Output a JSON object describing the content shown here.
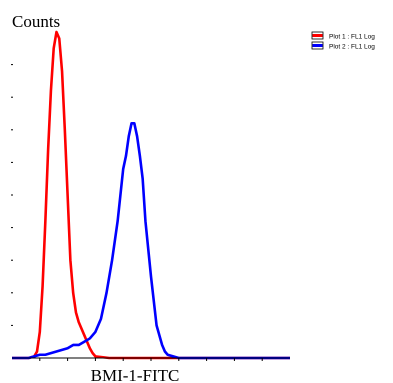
{
  "chart_data": {
    "type": "line",
    "title": "",
    "ylabel": "Counts",
    "xlabel": "BMI-1-FITC",
    "xlim": [
      0,
      100
    ],
    "ylim": [
      0,
      100
    ],
    "y_ticks": [
      10,
      20,
      30,
      40,
      50,
      60,
      70,
      80,
      90
    ],
    "x_ticks": [
      10,
      20,
      30,
      40,
      50,
      60,
      70,
      80,
      90
    ],
    "grid": false,
    "legend_position": "top-right",
    "series": [
      {
        "name": "Plot 1 : FL1 Log",
        "color": "#ff0000",
        "x": [
          0,
          3,
          6,
          8,
          9,
          10,
          11,
          12,
          13,
          14,
          15,
          16,
          17,
          18,
          19,
          20,
          21,
          22,
          23,
          24,
          25,
          26,
          27,
          28,
          29,
          30,
          32,
          35,
          40,
          50,
          100
        ],
        "y": [
          0,
          0,
          0,
          0.5,
          2,
          8,
          22,
          42,
          64,
          82,
          95,
          100,
          98,
          88,
          70,
          50,
          30,
          20,
          14,
          11,
          9,
          7,
          5,
          3,
          1.5,
          0.5,
          0.3,
          0,
          0,
          0,
          0
        ]
      },
      {
        "name": "Plot 2 : FL1 Log",
        "color": "#0000ff",
        "x": [
          0,
          3,
          6,
          8,
          10,
          12,
          14,
          16,
          18,
          20,
          22,
          24,
          26,
          28,
          30,
          32,
          34,
          36,
          38,
          40,
          41,
          42,
          43,
          44,
          45,
          46,
          47,
          48,
          50,
          52,
          54,
          55,
          56,
          58,
          60,
          70,
          100
        ],
        "y": [
          0,
          0,
          0,
          0.5,
          1,
          1,
          1.5,
          2,
          2.5,
          3,
          4,
          4,
          5,
          6,
          8,
          12,
          20,
          30,
          42,
          58,
          62,
          68,
          72,
          72,
          68,
          62,
          55,
          42,
          25,
          10,
          4,
          2,
          1,
          0.5,
          0,
          0,
          0
        ]
      }
    ]
  }
}
